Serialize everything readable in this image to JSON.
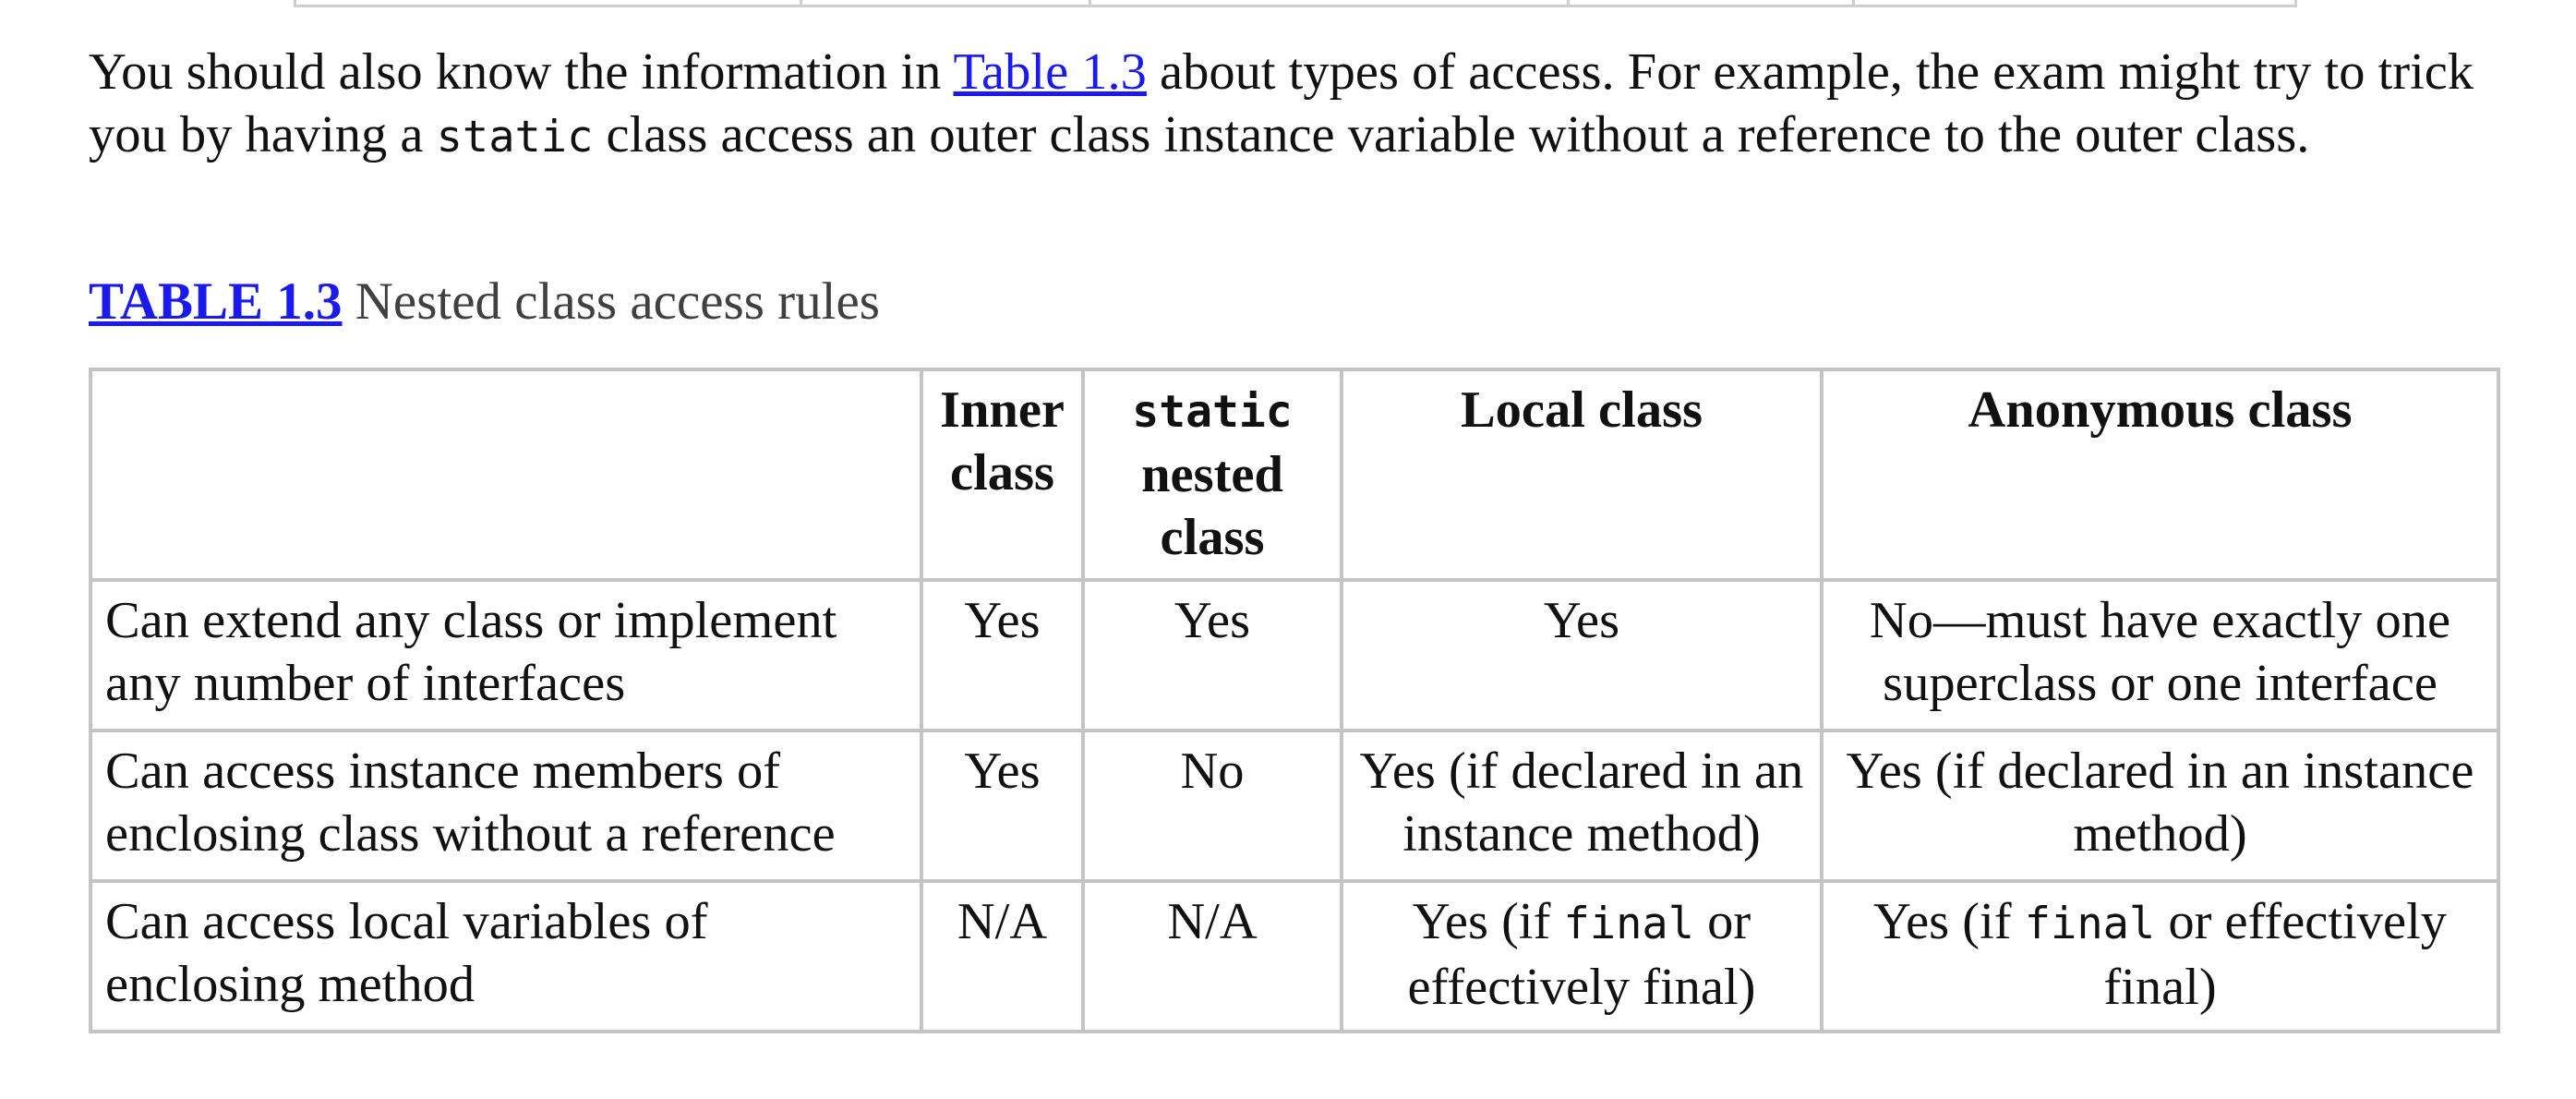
{
  "paragraph": {
    "before_link": "You should also know the information in ",
    "link": "Table 1.3",
    "after_link": " about types of access. For example, the exam might try to trick you by having a ",
    "code": "static",
    "after_code": " class access an outer class instance variable without a reference to the outer class."
  },
  "caption": {
    "label": "TABLE 1.3",
    "title": "Nested class access rules"
  },
  "table": {
    "headers": {
      "inner": "Inner class",
      "static_code": "static",
      "static_rest": "nested class",
      "local": "Local class",
      "anonymous": "Anonymous class"
    },
    "rows": [
      {
        "label": "Can extend any class or implement any number of interfaces",
        "inner": "Yes",
        "static": "Yes",
        "local": "Yes",
        "anonymous": "No—must have exactly one superclass or one interface"
      },
      {
        "label": "Can access instance members of enclosing class without a reference",
        "inner": "Yes",
        "static": "No",
        "local": "Yes (if declared in an instance method)",
        "anonymous": "Yes (if declared in an instance method)"
      },
      {
        "label": "Can access local variables of enclosing method",
        "inner": "N/A",
        "static": "N/A",
        "local_pre": "Yes (if ",
        "local_code": "final",
        "local_post": " or effectively final)",
        "anon_pre": "Yes (if ",
        "anon_code": "final",
        "anon_post": " or effectively final)"
      }
    ]
  }
}
